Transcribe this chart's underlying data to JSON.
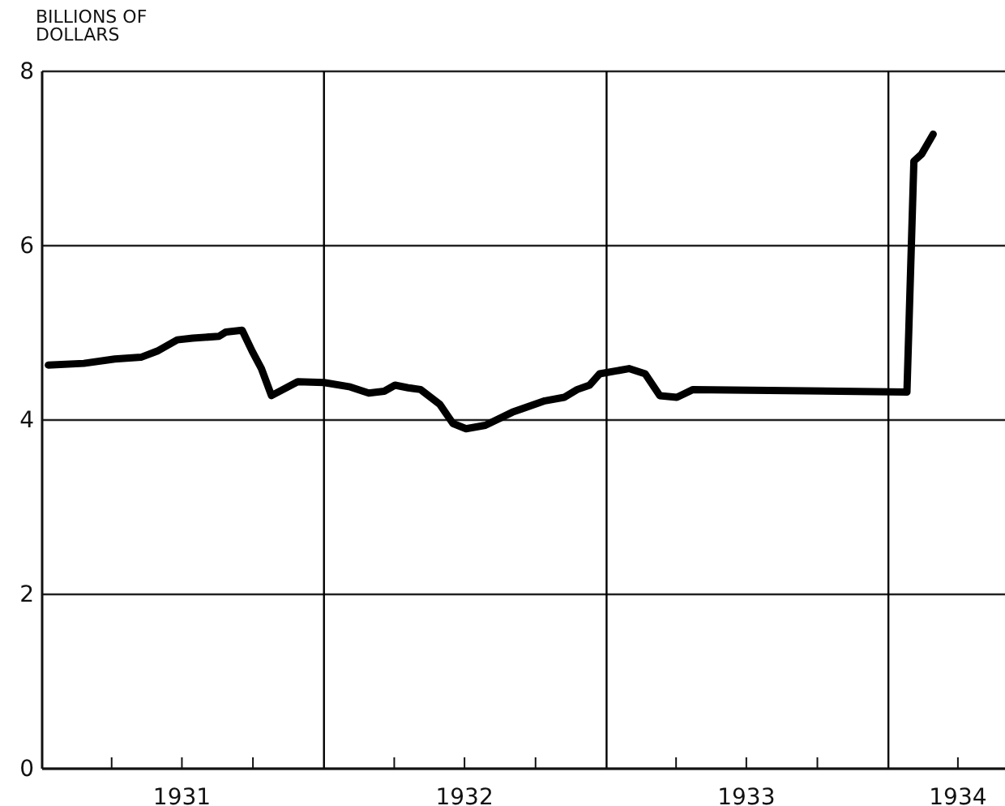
{
  "chart_data": {
    "type": "line",
    "ylabel": "BILLIONS OF DOLLARS",
    "x": [
      "1931-01-09",
      "1931-02-24",
      "1931-04-05",
      "1931-05-09",
      "1931-05-30",
      "1931-06-25",
      "1931-07-15",
      "1931-08-18",
      "1931-08-27",
      "1931-09-17",
      "1931-09-30",
      "1931-10-12",
      "1931-10-25",
      "1931-11-28",
      "1932-01-01",
      "1932-02-04",
      "1932-02-28",
      "1932-03-19",
      "1932-04-02",
      "1932-04-19",
      "1932-05-05",
      "1932-05-30",
      "1932-06-16",
      "1932-07-03",
      "1932-07-28",
      "1932-09-01",
      "1932-10-13",
      "1932-11-07",
      "1932-11-24",
      "1932-12-10",
      "1932-12-23",
      "1933-01-30",
      "1933-02-20",
      "1933-03-11",
      "1933-04-02",
      "1933-04-23",
      "1934-01-25",
      "1934-02-03",
      "1934-02-13",
      "1934-02-28"
    ],
    "series": [
      {
        "color": "#000000",
        "values": [
          4.63,
          4.65,
          4.7,
          4.72,
          4.79,
          4.92,
          4.94,
          4.96,
          5.01,
          5.03,
          4.79,
          4.59,
          4.28,
          4.44,
          4.43,
          4.38,
          4.31,
          4.33,
          4.4,
          4.37,
          4.35,
          4.18,
          3.96,
          3.9,
          3.94,
          4.09,
          4.22,
          4.26,
          4.35,
          4.4,
          4.53,
          4.59,
          4.53,
          4.28,
          4.26,
          4.35,
          4.32,
          6.97,
          7.05,
          7.28
        ]
      }
    ],
    "xlim": [
      "1931-01-01",
      "1934-06-01"
    ],
    "xticks": [
      {
        "value": "1931-04-01",
        "label": null
      },
      {
        "value": "1931-07-01",
        "label": "1931"
      },
      {
        "value": "1931-10-01",
        "label": null
      },
      {
        "value": "1932-04-01",
        "label": null
      },
      {
        "value": "1932-07-01",
        "label": "1932"
      },
      {
        "value": "1932-10-01",
        "label": null
      },
      {
        "value": "1933-04-01",
        "label": null
      },
      {
        "value": "1933-07-01",
        "label": "1933"
      },
      {
        "value": "1933-10-01",
        "label": null
      },
      {
        "value": "1934-04-01",
        "label": "1934"
      }
    ],
    "ylim": [
      0,
      8
    ],
    "yticks": [
      0,
      2,
      4,
      6,
      8
    ],
    "grid": "y",
    "ref_lines": [
      {
        "axis": "x",
        "value": "1932-01-01",
        "color": "#000000"
      },
      {
        "axis": "x",
        "value": "1933-01-01",
        "color": "#000000"
      },
      {
        "axis": "x",
        "value": "1934-01-01",
        "color": "#000000"
      }
    ],
    "marker": "none",
    "line_style": "solid"
  }
}
